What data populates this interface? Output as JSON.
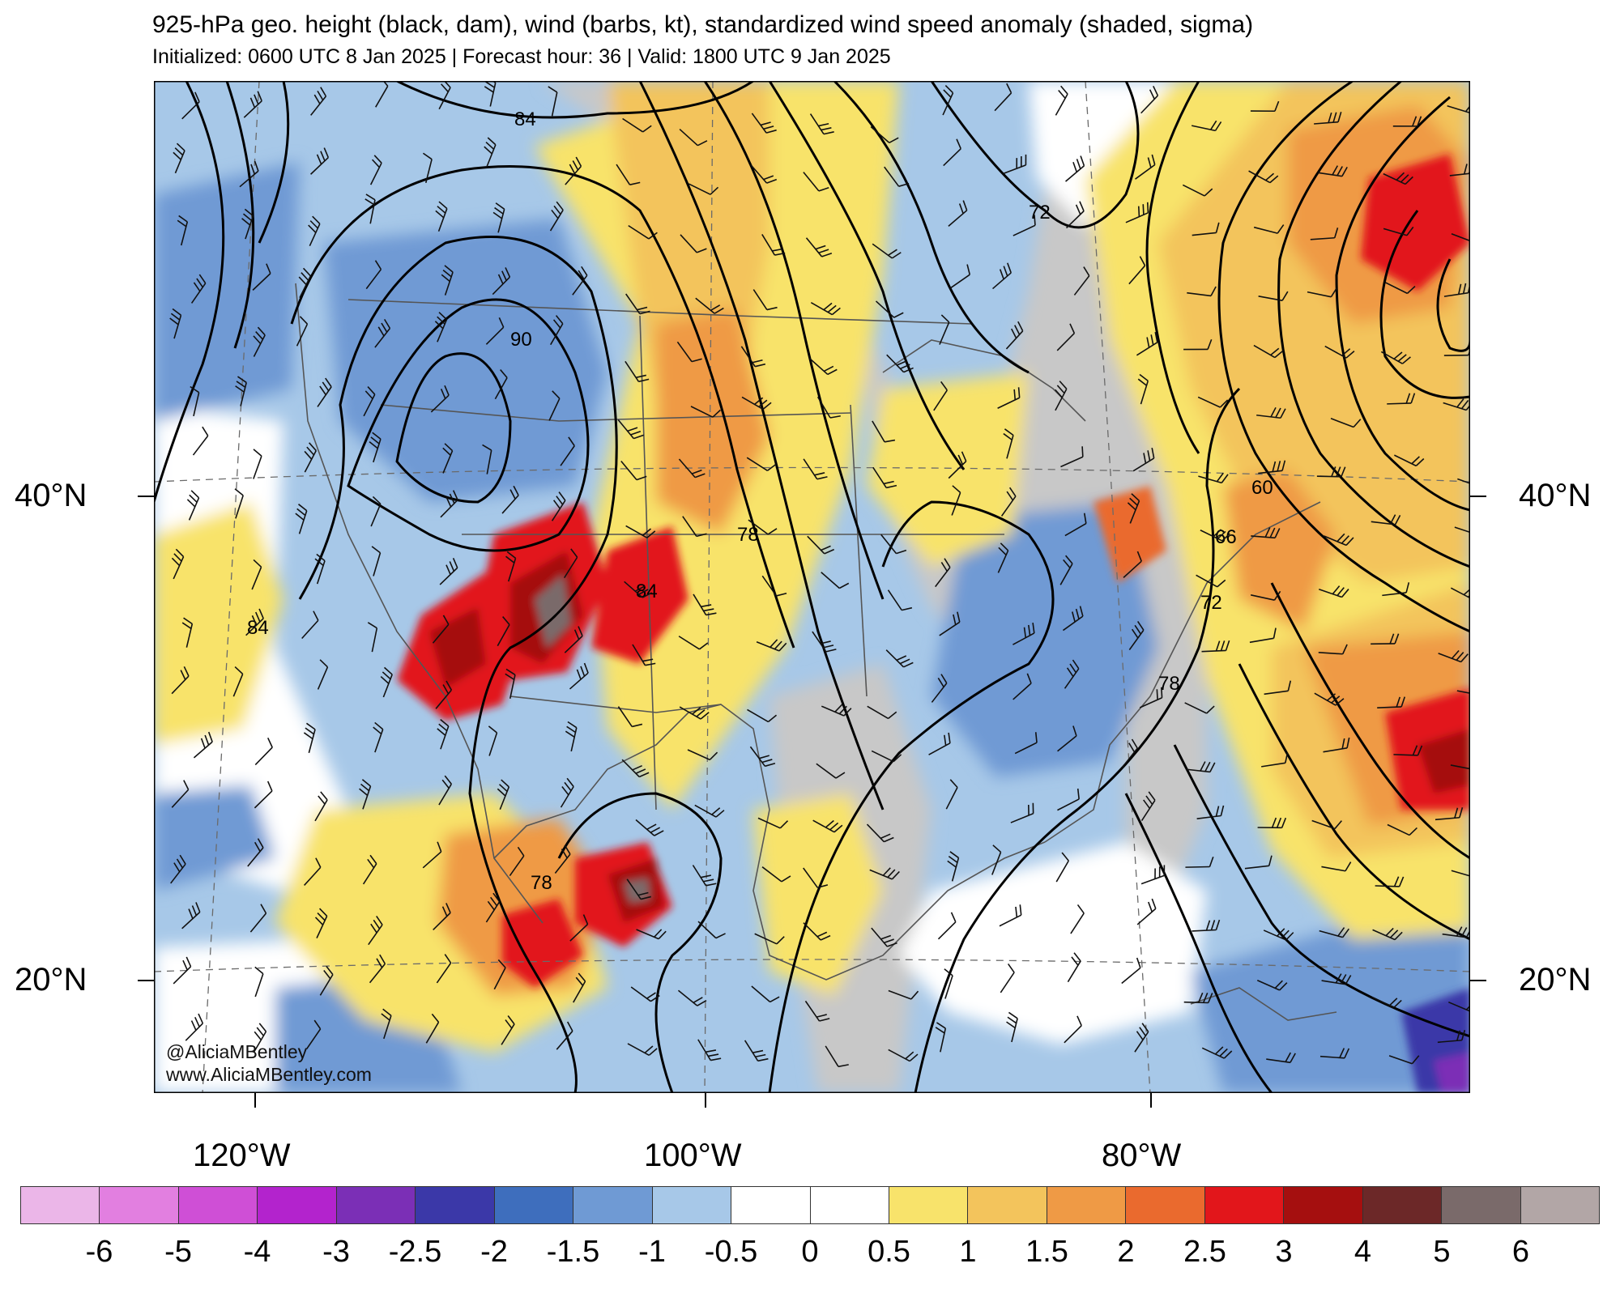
{
  "title": "925-hPa geo. height (black, dam), wind (barbs, kt), standardized wind speed anomaly (shaded, sigma)",
  "subtitle": "Initialized: 0600 UTC 8 Jan 2025 | Forecast hour: 36 | Valid: 1800 UTC 9 Jan 2025",
  "lat_labels": [
    "40°N",
    "20°N"
  ],
  "lon_labels": [
    "120°W",
    "100°W",
    "80°W"
  ],
  "contour_labels": [
    "84",
    "90",
    "84",
    "78",
    "84",
    "78",
    "72",
    "60",
    "66",
    "72",
    "78"
  ],
  "credit": {
    "handle": "@AliciaMBentley",
    "website": "www.AliciaMBentley.com"
  },
  "colorbar": {
    "labels": [
      "-6",
      "-5",
      "-4",
      "-3",
      "-2.5",
      "-2",
      "-1.5",
      "-1",
      "-0.5",
      "0",
      "0.5",
      "1",
      "1.5",
      "2",
      "2.5",
      "3",
      "4",
      "5",
      "6"
    ],
    "colors": [
      "#ebb6e8",
      "#e27fe0",
      "#cf4fd6",
      "#b323cd",
      "#7b2fb6",
      "#3b38a8",
      "#3e6ebd",
      "#6f9ad4",
      "#a7c8e8",
      "#ffffff",
      "#ffffff",
      "#f8e36b",
      "#f3c45c",
      "#ef9a45",
      "#ea6a2e",
      "#e2161b",
      "#a50f0f",
      "#6c2828",
      "#7a6a6a",
      "#b2a6a6"
    ]
  },
  "colors": {
    "land_gray": "#c8c8c8",
    "contour": "#000000",
    "border": "#555555"
  }
}
